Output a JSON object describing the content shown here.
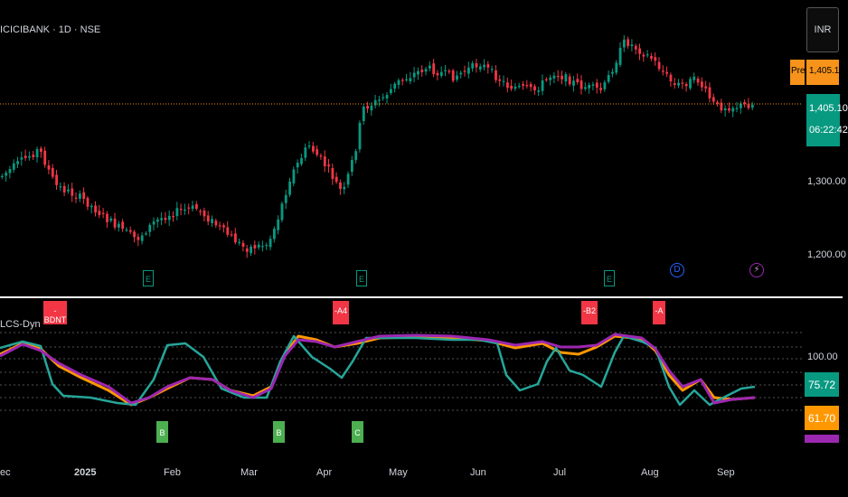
{
  "header": {
    "title": "ICICIBANK · 1D · NSE",
    "currency": "INR"
  },
  "price_tags": {
    "pre_label": "Pre",
    "pre_price": "1,405.10",
    "last_price": "1,405.10",
    "countdown": "06:22:42"
  },
  "price_axis": [
    "1,300.00",
    "1,200.00"
  ],
  "indicator": {
    "label": "LCS-Dyn",
    "axis": [
      "100.00"
    ],
    "values": [
      "75.72",
      "61.70"
    ],
    "value_colors": [
      "#089981",
      "#ff9800",
      "#9c27b0"
    ]
  },
  "time_axis": [
    {
      "label": "ec"
    },
    {
      "label": "2025"
    },
    {
      "label": "Feb"
    },
    {
      "label": "Mar"
    },
    {
      "label": "Apr"
    },
    {
      "label": "May"
    },
    {
      "label": "Jun"
    },
    {
      "label": "Jul"
    },
    {
      "label": "Aug"
    },
    {
      "label": "Sep"
    }
  ],
  "signals": [
    {
      "label": "-BDNT",
      "type": "sell"
    },
    {
      "label": "-A4",
      "type": "sell"
    },
    {
      "label": "-B2",
      "type": "sell"
    },
    {
      "label": "-A",
      "type": "sell"
    },
    {
      "label": "B",
      "type": "buy"
    },
    {
      "label": "B",
      "type": "buy"
    },
    {
      "label": "C",
      "type": "buy"
    }
  ],
  "events": [
    {
      "label": "E",
      "icon": "earnings-icon"
    },
    {
      "label": "E",
      "icon": "earnings-icon"
    },
    {
      "label": "E",
      "icon": "earnings-icon"
    },
    {
      "label": "D",
      "icon": "dividend-icon"
    },
    {
      "label": "⚡",
      "icon": "split-icon"
    }
  ],
  "colors": {
    "up": "#089981",
    "down": "#f23645",
    "line_teal": "#26a69a",
    "line_orange": "#ff9800",
    "line_purple": "#9c27b0"
  }
}
